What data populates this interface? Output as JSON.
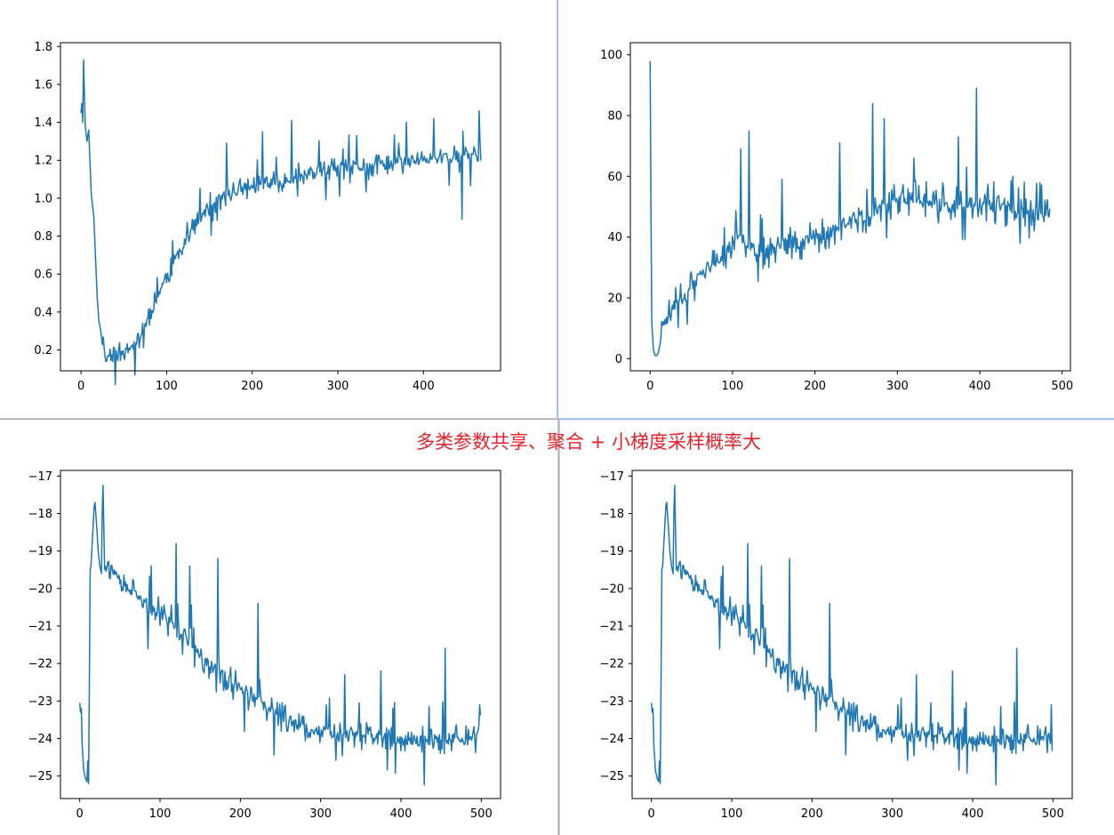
{
  "annotation": {
    "text": "多类参数共享、聚合 + 小梯度采样概率大",
    "color": "#e8222b"
  },
  "chart_data": [
    {
      "type": "line",
      "color": "#1f77b4",
      "xlim": [
        -24,
        490
      ],
      "ylim": [
        0.09,
        1.82
      ],
      "xticks": [
        0,
        100,
        200,
        300,
        400
      ],
      "yticks": [
        0.2,
        0.4,
        0.6,
        0.8,
        1.0,
        1.2,
        1.4,
        1.6,
        1.8
      ],
      "ytick_labels": [
        "0.2",
        "0.4",
        "0.6",
        "0.8",
        "1.0",
        "1.2",
        "1.4",
        "1.6",
        "1.8"
      ],
      "anchors": [
        [
          0,
          1.45
        ],
        [
          1,
          1.5
        ],
        [
          2,
          1.4
        ],
        [
          3,
          1.73
        ],
        [
          4,
          1.55
        ],
        [
          5,
          1.38
        ],
        [
          7,
          1.3
        ],
        [
          9,
          1.36
        ],
        [
          12,
          1.02
        ],
        [
          15,
          0.9
        ],
        [
          17,
          0.68
        ],
        [
          19,
          0.47
        ],
        [
          21,
          0.35
        ],
        [
          24,
          0.28
        ],
        [
          27,
          0.2
        ],
        [
          30,
          0.15
        ],
        [
          35,
          0.2
        ],
        [
          40,
          0.18
        ],
        [
          50,
          0.19
        ],
        [
          60,
          0.22
        ],
        [
          70,
          0.28
        ],
        [
          80,
          0.38
        ],
        [
          90,
          0.5
        ],
        [
          100,
          0.58
        ],
        [
          110,
          0.68
        ],
        [
          120,
          0.76
        ],
        [
          130,
          0.84
        ],
        [
          140,
          0.9
        ],
        [
          150,
          0.96
        ],
        [
          160,
          0.98
        ],
        [
          170,
          1.02
        ],
        [
          180,
          1.04
        ],
        [
          200,
          1.06
        ],
        [
          220,
          1.08
        ],
        [
          240,
          1.1
        ],
        [
          260,
          1.12
        ],
        [
          280,
          1.14
        ],
        [
          300,
          1.15
        ],
        [
          320,
          1.16
        ],
        [
          340,
          1.17
        ],
        [
          360,
          1.18
        ],
        [
          380,
          1.2
        ],
        [
          400,
          1.2
        ],
        [
          420,
          1.21
        ],
        [
          440,
          1.22
        ],
        [
          460,
          1.23
        ],
        [
          467,
          1.22
        ]
      ],
      "n": 468,
      "noise": [
        0.03,
        0.06,
        0.18
      ],
      "noise_start": 24,
      "spikes": [
        [
          170,
          1.29
        ],
        [
          212,
          1.35
        ],
        [
          246,
          1.41
        ],
        [
          322,
          1.33
        ],
        [
          380,
          1.4
        ],
        [
          412,
          1.42
        ],
        [
          445,
          0.89
        ],
        [
          465,
          1.46
        ]
      ],
      "seed": 11
    },
    {
      "type": "line",
      "color": "#1f77b4",
      "xlim": [
        -24,
        510
      ],
      "ylim": [
        -4,
        104
      ],
      "xticks": [
        0,
        100,
        200,
        300,
        400,
        500
      ],
      "yticks": [
        0,
        20,
        40,
        60,
        80,
        100
      ],
      "ytick_labels": [
        "0",
        "20",
        "40",
        "60",
        "80",
        "100"
      ],
      "anchors": [
        [
          0,
          98
        ],
        [
          1,
          50
        ],
        [
          2,
          12
        ],
        [
          4,
          3
        ],
        [
          6,
          1
        ],
        [
          8,
          1
        ],
        [
          10,
          2
        ],
        [
          12,
          5
        ],
        [
          15,
          10
        ],
        [
          20,
          13
        ],
        [
          30,
          18
        ],
        [
          40,
          20
        ],
        [
          50,
          23
        ],
        [
          60,
          27
        ],
        [
          70,
          29
        ],
        [
          80,
          31
        ],
        [
          90,
          34
        ],
        [
          100,
          37
        ],
        [
          110,
          40
        ],
        [
          120,
          38
        ],
        [
          130,
          36
        ],
        [
          140,
          35
        ],
        [
          150,
          36
        ],
        [
          160,
          37
        ],
        [
          170,
          38
        ],
        [
          180,
          38
        ],
        [
          200,
          40
        ],
        [
          220,
          42
        ],
        [
          240,
          45
        ],
        [
          260,
          47
        ],
        [
          280,
          50
        ],
        [
          300,
          52
        ],
        [
          320,
          53
        ],
        [
          340,
          51
        ],
        [
          360,
          50
        ],
        [
          380,
          51
        ],
        [
          400,
          52
        ],
        [
          420,
          50
        ],
        [
          440,
          49
        ],
        [
          460,
          48
        ],
        [
          480,
          47
        ],
        [
          485,
          48
        ]
      ],
      "n": 486,
      "noise": [
        2,
        6,
        12
      ],
      "noise_start": 12,
      "spikes": [
        [
          110,
          69
        ],
        [
          120,
          75
        ],
        [
          160,
          59
        ],
        [
          230,
          71
        ],
        [
          270,
          84
        ],
        [
          284,
          79
        ],
        [
          320,
          66
        ],
        [
          374,
          73
        ],
        [
          396,
          89
        ],
        [
          440,
          60
        ]
      ],
      "seed": 23
    },
    {
      "type": "line",
      "color": "#1f77b4",
      "xlim": [
        -24,
        524
      ],
      "ylim": [
        -25.6,
        -16.85
      ],
      "xticks": [
        0,
        100,
        200,
        300,
        400,
        500
      ],
      "yticks": [
        -25,
        -24,
        -23,
        -22,
        -21,
        -20,
        -19,
        -18,
        -17
      ],
      "ytick_labels": [
        "−25",
        "−24",
        "−23",
        "−22",
        "−21",
        "−20",
        "−19",
        "−18",
        "−17"
      ],
      "anchors": [
        [
          0,
          -23.05
        ],
        [
          1,
          -23.3
        ],
        [
          2,
          -23.2
        ],
        [
          3,
          -24.15
        ],
        [
          5,
          -24.85
        ],
        [
          7,
          -25.05
        ],
        [
          9,
          -25.15
        ],
        [
          10,
          -24.6
        ],
        [
          11,
          -25.2
        ],
        [
          12,
          -22.5
        ],
        [
          13,
          -19.5
        ],
        [
          14,
          -19.4
        ],
        [
          16,
          -18.6
        ],
        [
          18,
          -17.8
        ],
        [
          19,
          -17.7
        ],
        [
          21,
          -18.3
        ],
        [
          23,
          -19.0
        ],
        [
          25,
          -19.4
        ],
        [
          27,
          -19.6
        ],
        [
          28,
          -18.0
        ],
        [
          29,
          -17.25
        ],
        [
          31,
          -19.5
        ],
        [
          35,
          -19.3
        ],
        [
          40,
          -19.5
        ],
        [
          50,
          -19.9
        ],
        [
          60,
          -20.0
        ],
        [
          70,
          -20.2
        ],
        [
          80,
          -20.4
        ],
        [
          90,
          -20.6
        ],
        [
          100,
          -20.6
        ],
        [
          110,
          -20.9
        ],
        [
          120,
          -21.0
        ],
        [
          130,
          -21.2
        ],
        [
          140,
          -21.5
        ],
        [
          150,
          -21.8
        ],
        [
          160,
          -22.0
        ],
        [
          180,
          -22.3
        ],
        [
          200,
          -22.7
        ],
        [
          220,
          -23.0
        ],
        [
          240,
          -23.3
        ],
        [
          260,
          -23.5
        ],
        [
          280,
          -23.7
        ],
        [
          300,
          -23.8
        ],
        [
          320,
          -23.9
        ],
        [
          340,
          -23.95
        ],
        [
          360,
          -24.0
        ],
        [
          380,
          -24.0
        ],
        [
          400,
          -24.0
        ],
        [
          420,
          -24.05
        ],
        [
          440,
          -24.05
        ],
        [
          460,
          -24.0
        ],
        [
          480,
          -24.05
        ],
        [
          495,
          -24.05
        ],
        [
          499,
          -23.5
        ]
      ],
      "n": 500,
      "noise": [
        0.15,
        0.4,
        1.2
      ],
      "noise_start": 32,
      "spikes": [
        [
          120,
          -18.8
        ],
        [
          137,
          -19.4
        ],
        [
          172,
          -19.2
        ],
        [
          222,
          -20.4
        ],
        [
          330,
          -22.3
        ],
        [
          375,
          -22.2
        ],
        [
          455,
          -21.6
        ],
        [
          498,
          -23.1
        ]
      ],
      "seed": 37
    },
    {
      "type": "line",
      "color": "#1f77b4",
      "xlim": [
        -24,
        524
      ],
      "ylim": [
        -25.6,
        -16.85
      ],
      "xticks": [
        0,
        100,
        200,
        300,
        400,
        500
      ],
      "yticks": [
        -25,
        -24,
        -23,
        -22,
        -21,
        -20,
        -19,
        -18,
        -17
      ],
      "ytick_labels": [
        "−25",
        "−24",
        "−23",
        "−22",
        "−21",
        "−20",
        "−19",
        "−18",
        "−17"
      ],
      "anchors": [
        [
          0,
          -23.05
        ],
        [
          1,
          -23.3
        ],
        [
          2,
          -23.2
        ],
        [
          3,
          -24.15
        ],
        [
          5,
          -24.85
        ],
        [
          7,
          -25.05
        ],
        [
          9,
          -25.15
        ],
        [
          10,
          -24.6
        ],
        [
          11,
          -25.2
        ],
        [
          12,
          -22.5
        ],
        [
          13,
          -19.5
        ],
        [
          14,
          -19.4
        ],
        [
          16,
          -18.6
        ],
        [
          18,
          -17.8
        ],
        [
          19,
          -17.7
        ],
        [
          21,
          -18.3
        ],
        [
          23,
          -19.0
        ],
        [
          25,
          -19.4
        ],
        [
          27,
          -19.6
        ],
        [
          28,
          -18.0
        ],
        [
          29,
          -17.25
        ],
        [
          31,
          -19.5
        ],
        [
          35,
          -19.3
        ],
        [
          40,
          -19.5
        ],
        [
          50,
          -19.9
        ],
        [
          60,
          -20.0
        ],
        [
          70,
          -20.2
        ],
        [
          80,
          -20.4
        ],
        [
          90,
          -20.6
        ],
        [
          100,
          -20.6
        ],
        [
          110,
          -20.9
        ],
        [
          120,
          -21.0
        ],
        [
          130,
          -21.2
        ],
        [
          140,
          -21.5
        ],
        [
          150,
          -21.8
        ],
        [
          160,
          -22.0
        ],
        [
          180,
          -22.3
        ],
        [
          200,
          -22.7
        ],
        [
          220,
          -23.0
        ],
        [
          240,
          -23.3
        ],
        [
          260,
          -23.5
        ],
        [
          280,
          -23.7
        ],
        [
          300,
          -23.8
        ],
        [
          320,
          -23.9
        ],
        [
          340,
          -23.95
        ],
        [
          360,
          -24.0
        ],
        [
          380,
          -24.0
        ],
        [
          400,
          -24.0
        ],
        [
          420,
          -24.05
        ],
        [
          440,
          -24.05
        ],
        [
          460,
          -24.0
        ],
        [
          480,
          -24.05
        ],
        [
          495,
          -24.05
        ],
        [
          499,
          -24.45
        ]
      ],
      "n": 500,
      "noise": [
        0.15,
        0.4,
        1.2
      ],
      "noise_start": 32,
      "spikes": [
        [
          120,
          -18.8
        ],
        [
          137,
          -19.4
        ],
        [
          172,
          -19.2
        ],
        [
          222,
          -20.4
        ],
        [
          330,
          -22.3
        ],
        [
          375,
          -22.2
        ],
        [
          455,
          -21.6
        ],
        [
          498,
          -23.1
        ]
      ],
      "seed": 37
    }
  ]
}
